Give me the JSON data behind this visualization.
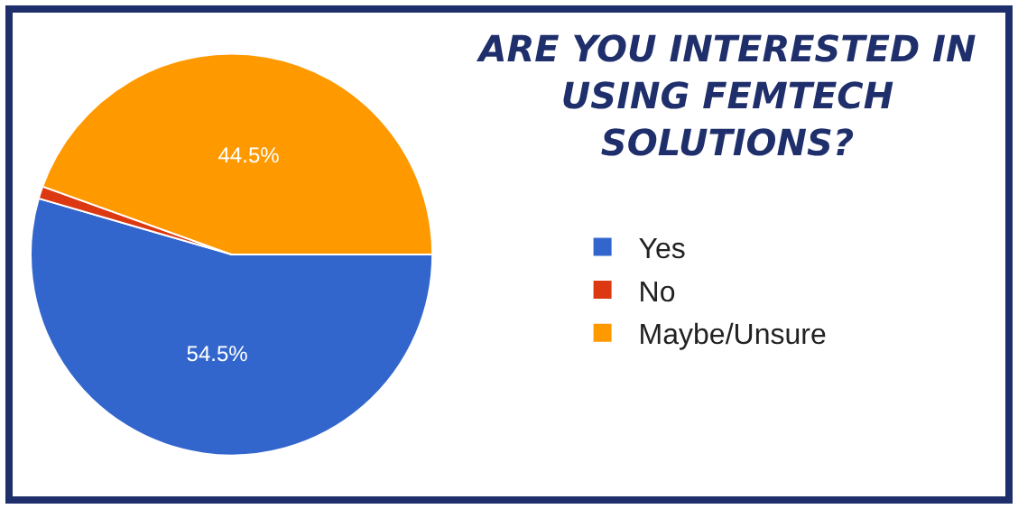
{
  "chart_data": {
    "type": "pie",
    "title": "ARE YOU INTERESTED IN USING FEMTECH SOLUTIONS?",
    "categories": [
      "Yes",
      "No",
      "Maybe/Unsure"
    ],
    "values": [
      54.5,
      1.0,
      44.5
    ],
    "colors": [
      "#3366cc",
      "#dc3912",
      "#ff9900"
    ],
    "value_labels": [
      "54.5%",
      null,
      "44.5%"
    ],
    "legend": "right"
  }
}
